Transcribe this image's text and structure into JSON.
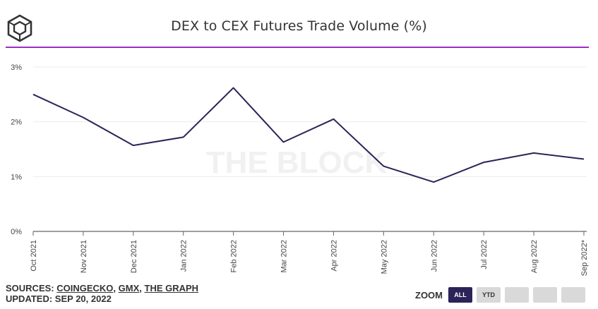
{
  "header": {
    "title": "DEX to CEX Futures Trade Volume (%)",
    "accent_color": "#9c2ec5"
  },
  "watermark": "THE BLOCK",
  "chart_data": {
    "type": "line",
    "title": "DEX to CEX Futures Trade Volume (%)",
    "x": [
      "Oct 2021",
      "Nov 2021",
      "Dec 2021",
      "Jan 2022",
      "Feb 2022",
      "Mar 2022",
      "Apr 2022",
      "May 2022",
      "Jun 2022",
      "Jul 2022",
      "Aug 2022",
      "Sep 2022*"
    ],
    "series": [
      {
        "values": [
          2.5,
          2.08,
          1.57,
          1.72,
          2.62,
          1.63,
          2.05,
          1.19,
          0.9,
          1.26,
          1.43,
          1.32
        ],
        "color": "#2c2358"
      }
    ],
    "y_ticks": [
      "0%",
      "1%",
      "2%",
      "3%"
    ],
    "ylim": [
      0,
      3
    ],
    "grid": true,
    "xlabel": "",
    "ylabel": ""
  },
  "footer": {
    "sources_prefix": "SOURCES: ",
    "sources": [
      "COINGECKO",
      "GMX",
      "THE GRAPH"
    ],
    "separator": ", ",
    "updated": "UPDATED: SEP 20, 2022"
  },
  "zoom": {
    "label": "ZOOM",
    "buttons": [
      "ALL",
      "YTD",
      "",
      "",
      ""
    ],
    "active": "ALL"
  }
}
